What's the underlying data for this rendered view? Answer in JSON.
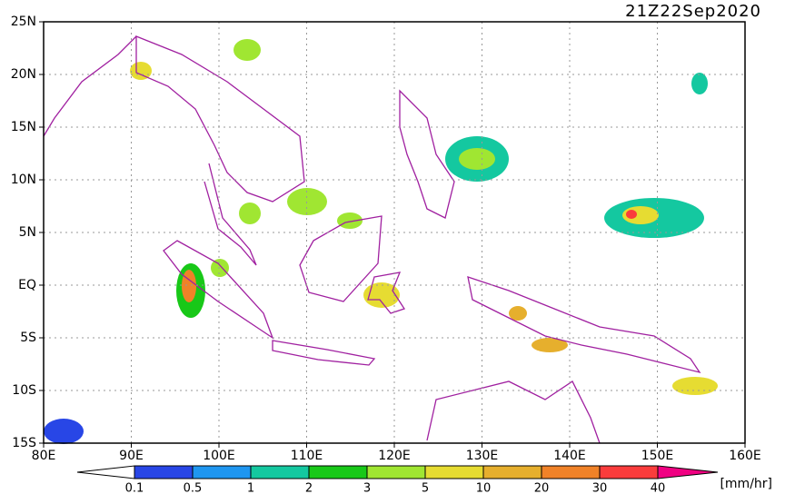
{
  "map": {
    "timestamp": "21Z22Sep2020",
    "lon_ticks": [
      {
        "value": 80,
        "label": "80E"
      },
      {
        "value": 90,
        "label": "90E"
      },
      {
        "value": 100,
        "label": "100E"
      },
      {
        "value": 110,
        "label": "110E"
      },
      {
        "value": 120,
        "label": "120E"
      },
      {
        "value": 130,
        "label": "130E"
      },
      {
        "value": 140,
        "label": "140E"
      },
      {
        "value": 150,
        "label": "150E"
      },
      {
        "value": 160,
        "label": "160E"
      }
    ],
    "lat_ticks": [
      {
        "value": -15,
        "label": "15S"
      },
      {
        "value": -10,
        "label": "10S"
      },
      {
        "value": -5,
        "label": "5S"
      },
      {
        "value": 0,
        "label": "EQ"
      },
      {
        "value": 5,
        "label": "5N"
      },
      {
        "value": 10,
        "label": "10N"
      },
      {
        "value": 15,
        "label": "15N"
      },
      {
        "value": 20,
        "label": "20N"
      },
      {
        "value": 25,
        "label": "25N"
      }
    ],
    "colorbar": {
      "levels": [
        0.1,
        0.5,
        1,
        2,
        3,
        5,
        10,
        20,
        30,
        40
      ],
      "colors": [
        "#2846e6",
        "#1e96f0",
        "#14c8a0",
        "#18c818",
        "#a0e632",
        "#e6dc32",
        "#e6af2d",
        "#f08228",
        "#fa3c3c",
        "#f00082"
      ],
      "unit": "[mm/hr]"
    }
  }
}
